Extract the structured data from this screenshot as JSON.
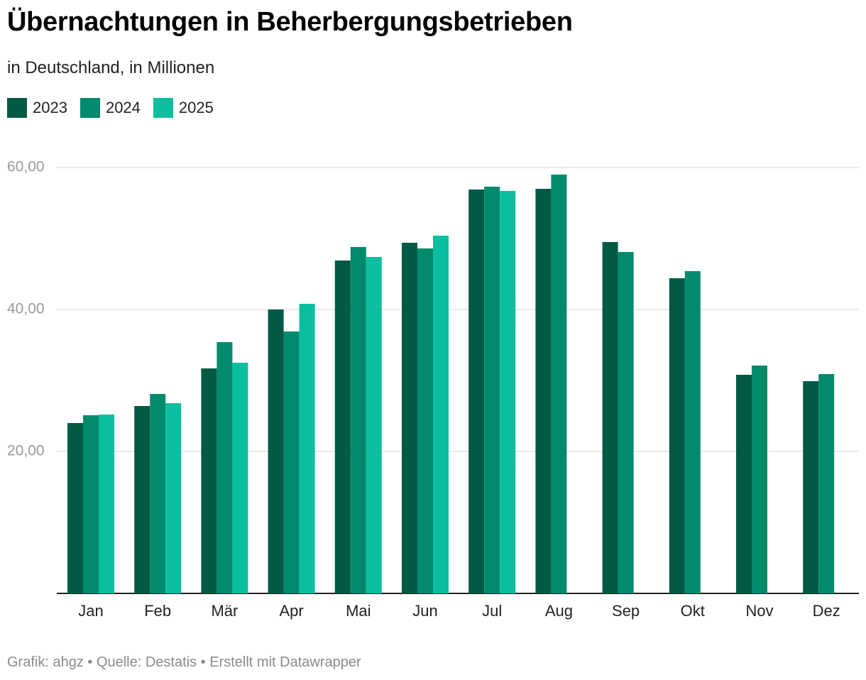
{
  "colors": {
    "s2023": "#025a45",
    "s2024": "#028a6d",
    "s2025": "#0abf9f"
  },
  "footer": "Grafik: ahgz • Quelle: Destatis • Erstellt mit Datawrapper",
  "chart_data": {
    "type": "bar",
    "title": "Übernachtungen in Beherbergungsbetrieben",
    "subtitle": "in Deutschland, in Millionen",
    "categories": [
      "Jan",
      "Feb",
      "Mär",
      "Apr",
      "Mai",
      "Jun",
      "Jul",
      "Aug",
      "Sep",
      "Okt",
      "Nov",
      "Dez"
    ],
    "series": [
      {
        "name": "2023",
        "values": [
          24.0,
          26.4,
          31.7,
          40.0,
          46.9,
          49.4,
          56.9,
          57.0,
          49.5,
          44.4,
          30.8,
          29.9
        ]
      },
      {
        "name": "2024",
        "values": [
          25.1,
          28.1,
          35.4,
          36.9,
          48.8,
          48.6,
          57.3,
          59.0,
          48.1,
          45.4,
          32.1,
          30.9
        ]
      },
      {
        "name": "2025",
        "values": [
          25.2,
          26.8,
          32.5,
          40.8,
          47.4,
          50.4,
          56.7,
          null,
          null,
          null,
          null,
          null
        ]
      }
    ],
    "yticks": [
      "20,00",
      "40,00",
      "60,00"
    ],
    "ytick_values": [
      20,
      40,
      60
    ],
    "ylim": [
      0,
      60
    ],
    "xlabel": "",
    "ylabel": "",
    "legend_position": "top-left",
    "grid": true
  }
}
